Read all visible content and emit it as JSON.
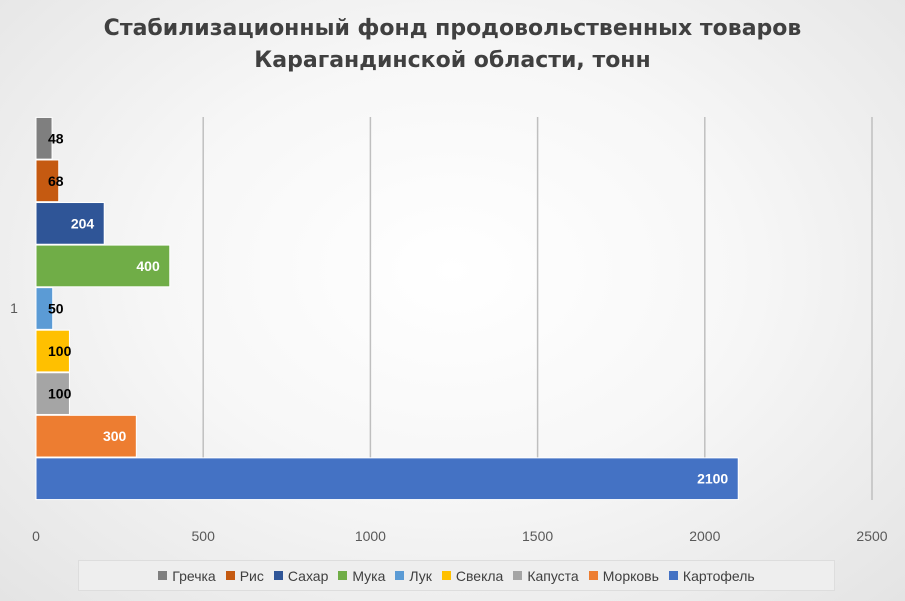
{
  "chart_data": {
    "type": "bar",
    "orientation": "horizontal",
    "title": "Стабилизационный фонд продовольственных товаров Карагандинской области, тонн",
    "title_lines": [
      "Стабилизационный фонд продовольственных товаров",
      "Карагандинской области, тонн"
    ],
    "categories": [
      "1"
    ],
    "xlim": [
      0,
      2500
    ],
    "x_ticks": [
      "0",
      "500",
      "1000",
      "1500",
      "2000",
      "2500"
    ],
    "grid": true,
    "legend_position": "bottom",
    "series": [
      {
        "name": "Гречка",
        "values": [
          48
        ],
        "color": "#7f7f7f",
        "label_color": "#000000"
      },
      {
        "name": "Рис",
        "values": [
          68
        ],
        "color": "#c55a11",
        "label_color": "#000000"
      },
      {
        "name": "Сахар",
        "values": [
          204
        ],
        "color": "#2f5597",
        "label_color": "#ffffff"
      },
      {
        "name": "Мука",
        "values": [
          400
        ],
        "color": "#70ad47",
        "label_color": "#ffffff"
      },
      {
        "name": "Лук",
        "values": [
          50
        ],
        "color": "#5b9bd5",
        "label_color": "#000000"
      },
      {
        "name": "Свекла",
        "values": [
          100
        ],
        "color": "#ffc000",
        "label_color": "#000000"
      },
      {
        "name": "Капуста",
        "values": [
          100
        ],
        "color": "#a5a5a5",
        "label_color": "#000000"
      },
      {
        "name": "Морковь",
        "values": [
          300
        ],
        "color": "#ed7d31",
        "label_color": "#ffffff"
      },
      {
        "name": "Картофель",
        "values": [
          2100
        ],
        "color": "#4472c4",
        "label_color": "#ffffff"
      }
    ]
  }
}
